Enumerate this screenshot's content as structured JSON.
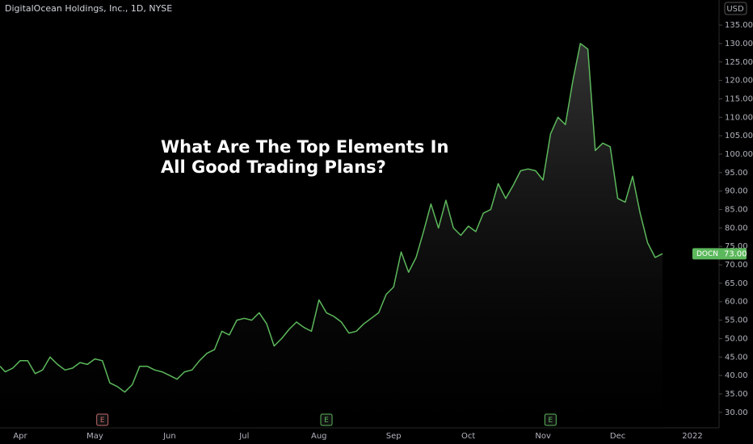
{
  "chart_data": {
    "type": "area",
    "title": "DigitalOcean Holdings, Inc., 1D, NYSE",
    "currency": "USD",
    "annotation": [
      "What Are The Top Elements In",
      "All Good Trading Plans?"
    ],
    "categories": [
      null,
      null,
      null,
      "Apr",
      null,
      null,
      null,
      null,
      null,
      null,
      null,
      null,
      null,
      "May",
      null,
      null,
      null,
      null,
      null,
      null,
      null,
      null,
      null,
      "Jun",
      null,
      null,
      null,
      null,
      null,
      null,
      null,
      null,
      null,
      "Jul",
      null,
      null,
      null,
      null,
      null,
      null,
      null,
      null,
      null,
      "Aug",
      null,
      null,
      null,
      null,
      null,
      null,
      null,
      null,
      null,
      "Sep",
      null,
      null,
      null,
      null,
      null,
      null,
      null,
      null,
      null,
      "Oct",
      null,
      null,
      null,
      null,
      null,
      null,
      null,
      null,
      null,
      "Nov",
      null,
      null,
      null,
      null,
      null,
      null,
      null,
      null,
      null,
      "Dec",
      null,
      null,
      null,
      null,
      null,
      null,
      null,
      null,
      null,
      "2022"
    ],
    "series": [
      {
        "name": "DOCN",
        "color": "#5cb85c",
        "values": [
          42.5,
          41,
          42,
          44,
          44,
          40.5,
          41.5,
          45,
          43,
          41.5,
          42,
          43.5,
          43,
          44.5,
          44,
          38,
          37,
          35.5,
          37.5,
          42.5,
          42.5,
          41.5,
          41,
          40,
          39,
          41,
          41.5,
          44,
          46,
          47,
          52,
          51,
          55,
          55.5,
          55,
          57,
          54,
          48,
          50,
          52.5,
          54.5,
          53,
          52,
          60.5,
          57,
          56,
          54.5,
          51.5,
          52,
          54,
          55.5,
          57,
          62,
          64,
          73.5,
          68,
          72,
          79,
          86.5,
          80,
          87.5,
          80,
          78,
          80.5,
          79,
          84,
          85,
          92,
          88,
          91.5,
          95.5,
          96,
          95.5,
          93,
          105.5,
          110,
          108,
          120,
          130,
          128.5,
          101,
          103,
          102,
          88,
          87,
          94,
          84,
          76,
          72,
          73,
          null,
          null,
          null,
          null
        ]
      }
    ],
    "last_price": {
      "name": "DOCN",
      "value": 73,
      "label": "73.00"
    },
    "events": [
      {
        "at": 14,
        "label": "E",
        "color": "#c46a6a"
      },
      {
        "at": 44,
        "label": "E",
        "color": "#5cb85c"
      },
      {
        "at": 74,
        "label": "E",
        "color": "#5cb85c"
      }
    ],
    "ylim": [
      25.8,
      141.8
    ],
    "yticks": [
      {
        "value": 30,
        "label": "30.00"
      },
      {
        "value": 35,
        "label": "35.00"
      },
      {
        "value": 40,
        "label": "40.00"
      },
      {
        "value": 45,
        "label": "45.00"
      },
      {
        "value": 50,
        "label": "50.00"
      },
      {
        "value": 55,
        "label": "55.00"
      },
      {
        "value": 60,
        "label": "60.00"
      },
      {
        "value": 65,
        "label": "65.00"
      },
      {
        "value": 70,
        "label": "70.00"
      },
      {
        "value": 75,
        "label": "75.00"
      },
      {
        "value": 80,
        "label": "80.00"
      },
      {
        "value": 85,
        "label": "85.00"
      },
      {
        "value": 90,
        "label": "90.00"
      },
      {
        "value": 95,
        "label": "95.00"
      },
      {
        "value": 100,
        "label": "100.00"
      },
      {
        "value": 105,
        "label": "105.00"
      },
      {
        "value": 110,
        "label": "110.00"
      },
      {
        "value": 115,
        "label": "115.00"
      },
      {
        "value": 120,
        "label": "120.00"
      },
      {
        "value": 125,
        "label": "125.00"
      },
      {
        "value": 130,
        "label": "130.00"
      },
      {
        "value": 135,
        "label": "135.00"
      }
    ],
    "grid": false
  }
}
